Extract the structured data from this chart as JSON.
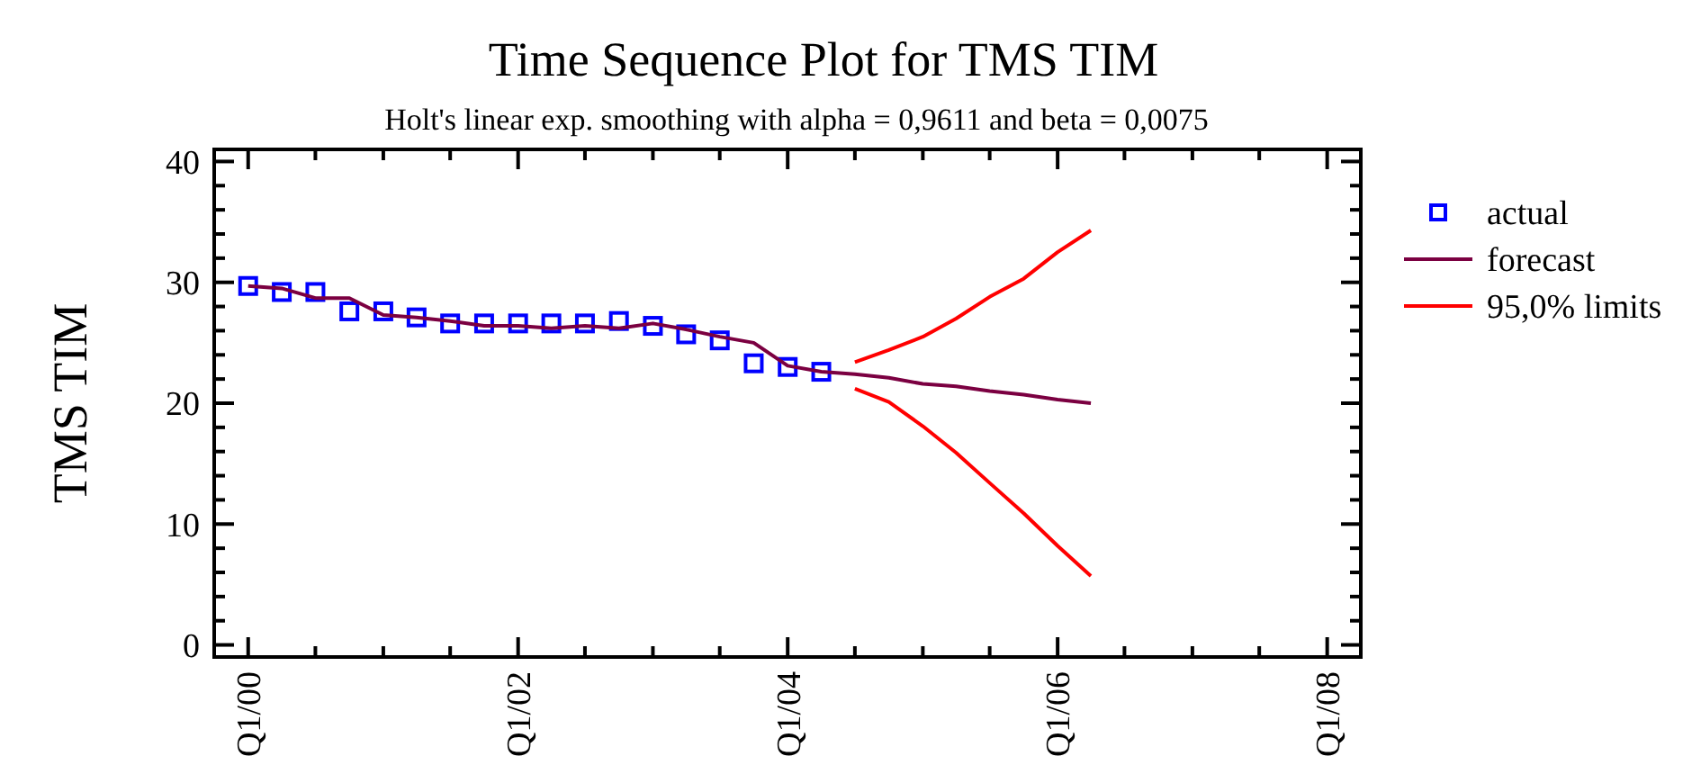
{
  "chart_data": {
    "type": "line",
    "title": "Time Sequence Plot for TMS TIM",
    "subtitle": "Holt's linear exp. smoothing with alpha = 0,9611 and beta = 0,0075",
    "ylabel": "TMS TIM",
    "xlim": [
      "1999-10",
      "2008-04"
    ],
    "ylim": [
      -1,
      41
    ],
    "xticks": [
      {
        "value": "2000-01",
        "label": "Q1/00"
      },
      {
        "value": "2000-07",
        "label": null
      },
      {
        "value": "2001-01",
        "label": null
      },
      {
        "value": "2001-07",
        "label": null
      },
      {
        "value": "2002-01",
        "label": "Q1/02"
      },
      {
        "value": "2002-07",
        "label": null
      },
      {
        "value": "2003-01",
        "label": null
      },
      {
        "value": "2003-07",
        "label": null
      },
      {
        "value": "2004-01",
        "label": "Q1/04"
      },
      {
        "value": "2004-07",
        "label": null
      },
      {
        "value": "2005-01",
        "label": null
      },
      {
        "value": "2005-07",
        "label": null
      },
      {
        "value": "2006-01",
        "label": "Q1/06"
      },
      {
        "value": "2006-07",
        "label": null
      },
      {
        "value": "2007-01",
        "label": null
      },
      {
        "value": "2007-07",
        "label": null
      },
      {
        "value": "2008-01",
        "label": "Q1/08"
      }
    ],
    "yticks": [
      0,
      {
        "value": 2,
        "label": null
      },
      {
        "value": 4,
        "label": null
      },
      {
        "value": 6,
        "label": null
      },
      {
        "value": 8,
        "label": null
      },
      10,
      {
        "value": 12,
        "label": null
      },
      {
        "value": 14,
        "label": null
      },
      {
        "value": 16,
        "label": null
      },
      {
        "value": 18,
        "label": null
      },
      20,
      {
        "value": 22,
        "label": null
      },
      {
        "value": 24,
        "label": null
      },
      {
        "value": 26,
        "label": null
      },
      {
        "value": 28,
        "label": null
      },
      30,
      {
        "value": 32,
        "label": null
      },
      {
        "value": 34,
        "label": null
      },
      {
        "value": 36,
        "label": null
      },
      {
        "value": 38,
        "label": null
      },
      40
    ],
    "grid": false,
    "legend": "right",
    "line_style": "solid",
    "series": [
      {
        "name": "actual",
        "type": "scatter",
        "marker": "square",
        "color": "#0000ff",
        "x": [
          "2000-01",
          "2000-04",
          "2000-07",
          "2000-10",
          "2001-01",
          "2001-04",
          "2001-07",
          "2001-10",
          "2002-01",
          "2002-04",
          "2002-07",
          "2002-10",
          "2003-01",
          "2003-04",
          "2003-07",
          "2003-10",
          "2004-01",
          "2004-04"
        ],
        "values": [
          29.7,
          29.2,
          29.2,
          27.6,
          27.6,
          27.1,
          26.6,
          26.6,
          26.6,
          26.6,
          26.6,
          26.8,
          26.4,
          25.7,
          25.2,
          23.3,
          23.0,
          22.6
        ]
      },
      {
        "name": "forecast",
        "color": "#7b0041",
        "x": [
          "2000-01",
          "2000-04",
          "2000-07",
          "2000-10",
          "2001-01",
          "2001-04",
          "2001-07",
          "2001-10",
          "2002-01",
          "2002-04",
          "2002-07",
          "2002-10",
          "2003-01",
          "2003-04",
          "2003-07",
          "2003-10",
          "2004-01",
          "2004-04",
          "2004-07",
          "2004-10",
          "2005-01",
          "2005-04",
          "2005-07",
          "2005-10",
          "2006-01",
          "2006-04"
        ],
        "values": [
          29.7,
          29.5,
          28.7,
          28.7,
          27.3,
          27.1,
          26.8,
          26.4,
          26.4,
          26.2,
          26.4,
          26.2,
          26.6,
          26.1,
          25.5,
          25.0,
          23.1,
          22.6,
          22.4,
          22.1,
          21.6,
          21.4,
          21.0,
          20.7,
          20.3,
          20.0
        ]
      },
      {
        "name": "95,0% limits",
        "color": "#ff0000",
        "x": [
          "2004-07",
          "2004-10",
          "2005-01",
          "2005-04",
          "2005-07",
          "2005-10",
          "2006-01",
          "2006-04"
        ],
        "values": [
          23.4,
          24.4,
          25.5,
          27.0,
          28.8,
          30.3,
          32.5,
          34.3
        ]
      },
      {
        "color": "#ff0000",
        "x": [
          "2004-07",
          "2004-10",
          "2005-01",
          "2005-04",
          "2005-07",
          "2005-10",
          "2006-01",
          "2006-04"
        ],
        "values": [
          21.2,
          20.1,
          18.1,
          15.9,
          13.4,
          10.9,
          8.2,
          5.7
        ]
      }
    ]
  }
}
